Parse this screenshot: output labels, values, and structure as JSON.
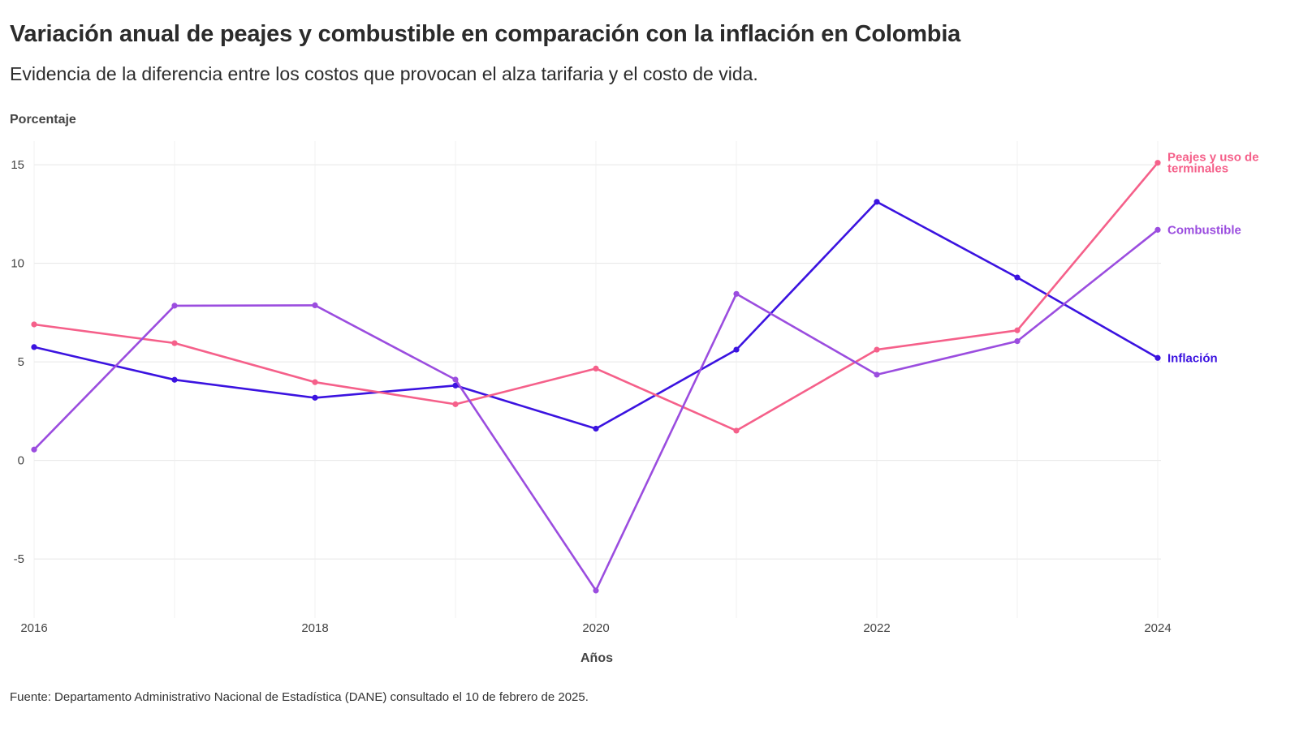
{
  "chart_data": {
    "type": "line",
    "title": "Variación anual de peajes y combustible en comparación con la inflación en Colombia",
    "subtitle": "Evidencia de la diferencia entre los costos que provocan el alza tarifaria y el costo de vida.",
    "ylabel": "Porcentaje",
    "xlabel": "Años",
    "source": "Fuente: Departamento Administrativo Nacional de Estadística (DANE) consultado el 10 de febrero de 2025.",
    "x": [
      2016,
      2017,
      2018,
      2019,
      2020,
      2021,
      2022,
      2023,
      2024
    ],
    "xticks": [
      2016,
      2018,
      2020,
      2022,
      2024
    ],
    "yticks": [
      15,
      10,
      5,
      0,
      -5
    ],
    "xlim": [
      2016,
      2024
    ],
    "ylim": [
      -8,
      16.2
    ],
    "grid": true,
    "legend": "end-of-line labels",
    "series": [
      {
        "name": "Inflación",
        "label_lines": [
          "Inflación"
        ],
        "color": "#3b13e0",
        "values": [
          5.75,
          4.09,
          3.18,
          3.8,
          1.61,
          5.62,
          13.12,
          9.28,
          5.2
        ]
      },
      {
        "name": "Peajes y uso de terminales",
        "label_lines": [
          "Peajes y uso de",
          "terminales"
        ],
        "color": "#f5608a",
        "values": [
          6.9,
          5.95,
          3.97,
          2.85,
          4.66,
          1.51,
          5.62,
          6.6,
          15.1
        ]
      },
      {
        "name": "Combustible",
        "label_lines": [
          "Combustible"
        ],
        "color": "#9b4ddf",
        "values": [
          0.55,
          7.85,
          7.87,
          4.1,
          -6.6,
          8.45,
          4.35,
          6.05,
          11.7
        ]
      }
    ]
  }
}
